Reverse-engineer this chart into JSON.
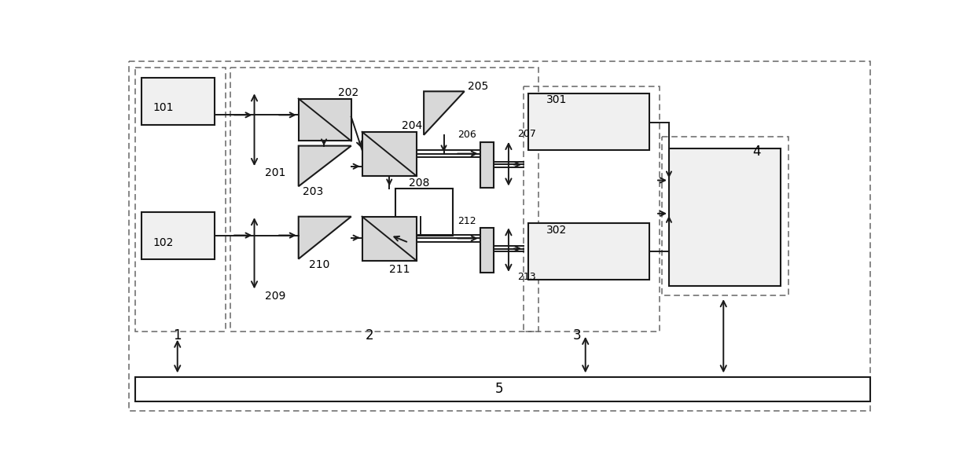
{
  "bg": "#ffffff",
  "lc": "#1a1a1a",
  "fc": "#d8d8d8",
  "fw": 12.39,
  "fh": 5.97,
  "dpi": 100
}
